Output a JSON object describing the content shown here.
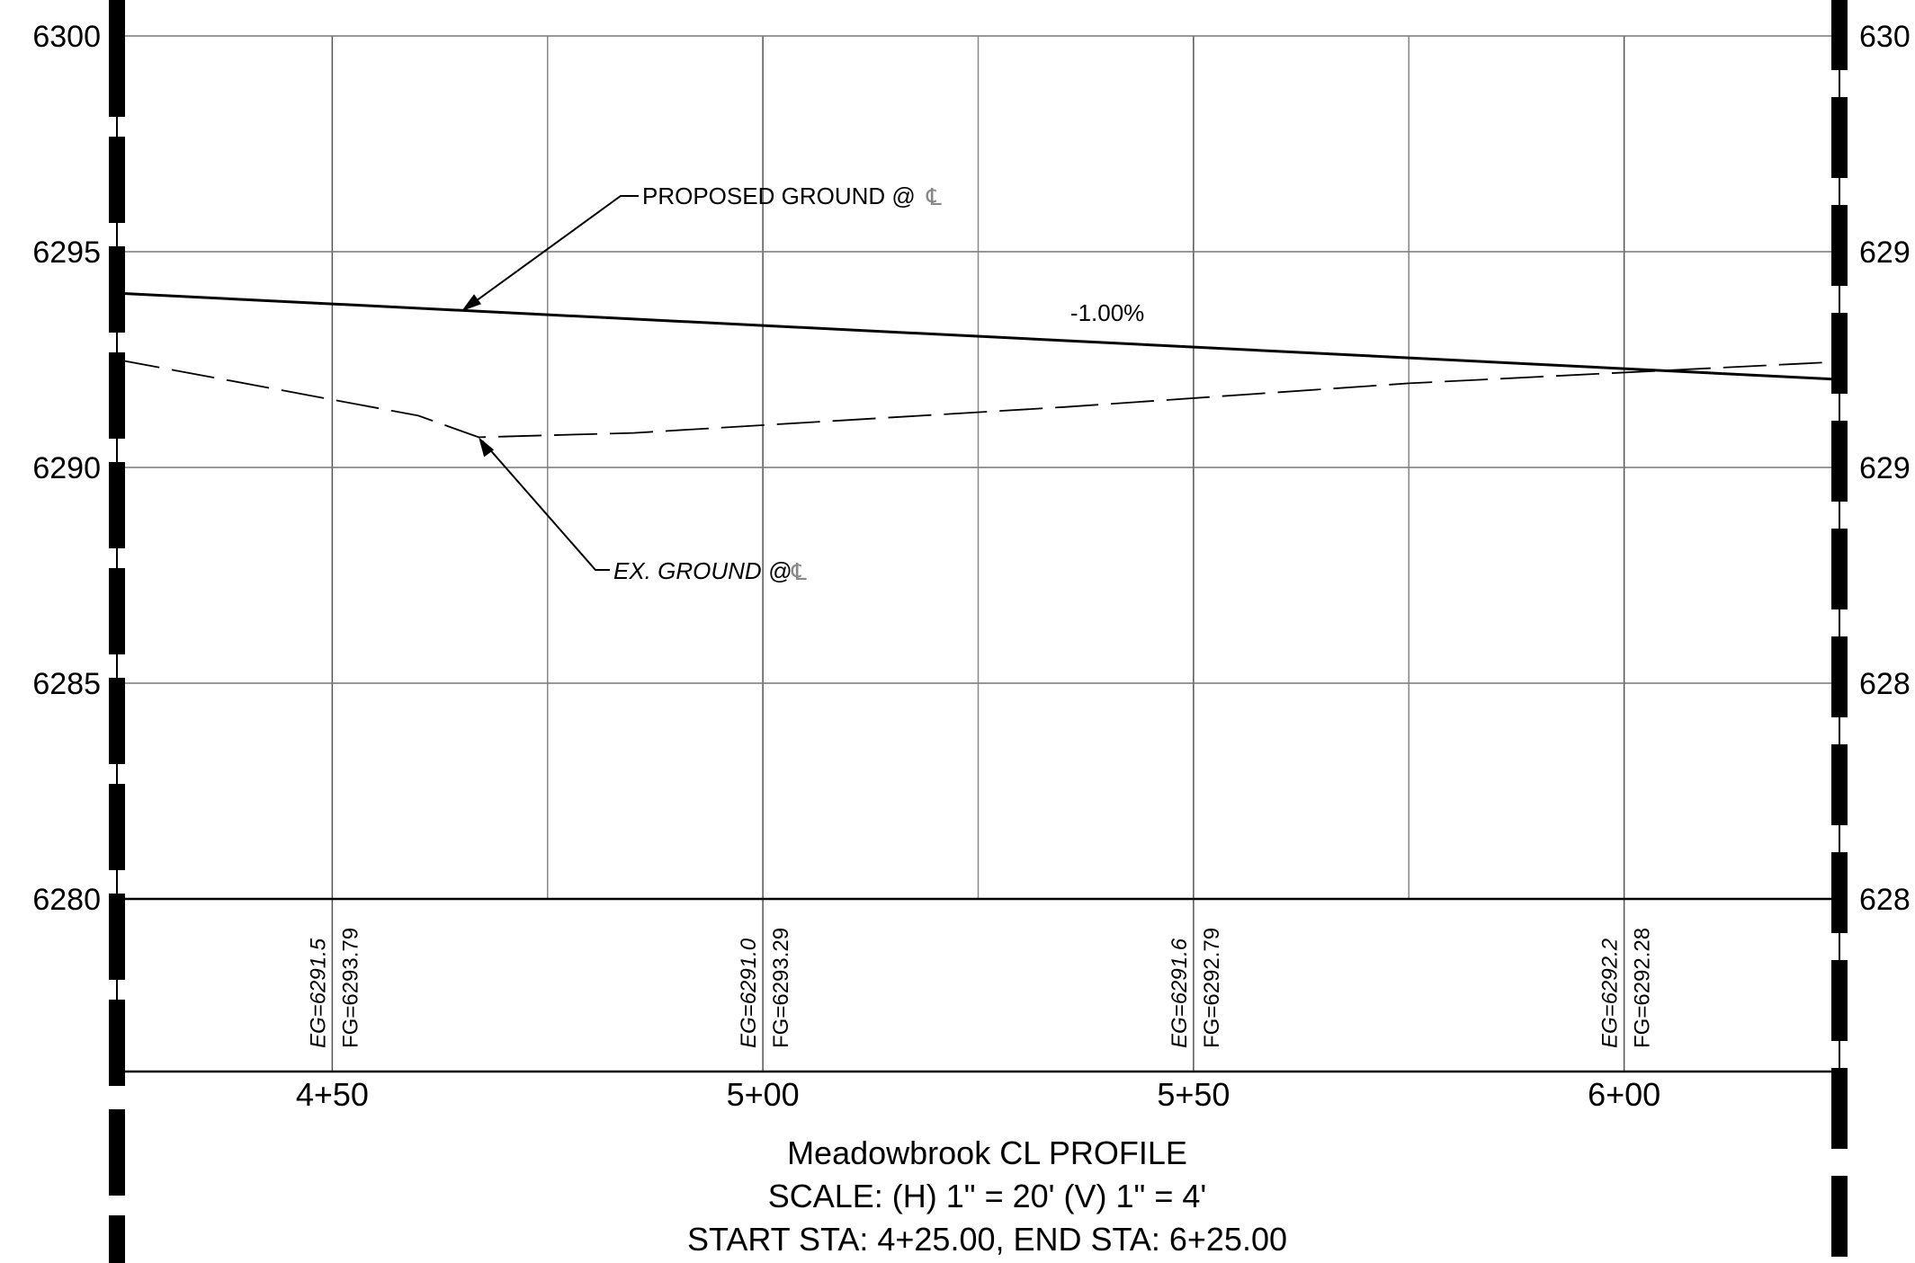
{
  "chart_data": {
    "type": "line",
    "title": "Meadowbrook CL PROFILE",
    "subtitle_scale": "SCALE: (H) 1\" = 20' (V) 1\" = 4'",
    "subtitle_range": "START STA: 4+25.00, END STA: 6+25.00",
    "y_ticks": [
      "6300",
      "6295",
      "6290",
      "6285",
      "6280"
    ],
    "y_ticks_right": [
      "630",
      "629",
      "629",
      "628",
      "628"
    ],
    "ylim": [
      6280,
      6300
    ],
    "xlim": [
      425,
      625
    ],
    "x_ticks": [
      {
        "value": 450,
        "label": "4+50"
      },
      {
        "value": 500,
        "label": "5+00"
      },
      {
        "value": 550,
        "label": "5+50"
      },
      {
        "value": 600,
        "label": "6+00"
      }
    ],
    "grid": true,
    "series": [
      {
        "name": "PROPOSED GROUND @",
        "style": "solid",
        "color": "#000000",
        "x": [
          425,
          625
        ],
        "y": [
          6294.04,
          6292.04
        ]
      },
      {
        "name": "EX. GROUND @",
        "style": "dashed",
        "color": "#000000",
        "x": [
          425,
          460,
          467,
          485,
          535,
          575,
          620,
          625
        ],
        "y": [
          6292.5,
          6291.2,
          6290.7,
          6290.8,
          6291.4,
          6291.95,
          6292.4,
          6292.45
        ]
      }
    ],
    "grade_annotation": "-1.00%",
    "elevation_labels": [
      {
        "station": 450,
        "eg": "EG=6291.5",
        "fg": "FG=6293.79"
      },
      {
        "station": 500,
        "eg": "EG=6291.0",
        "fg": "FG=6293.29"
      },
      {
        "station": 550,
        "eg": "EG=6291.6",
        "fg": "FG=6292.79"
      },
      {
        "station": 600,
        "eg": "EG=6292.2",
        "fg": "FG=6292.28"
      }
    ],
    "centerline_symbol": "℄"
  }
}
